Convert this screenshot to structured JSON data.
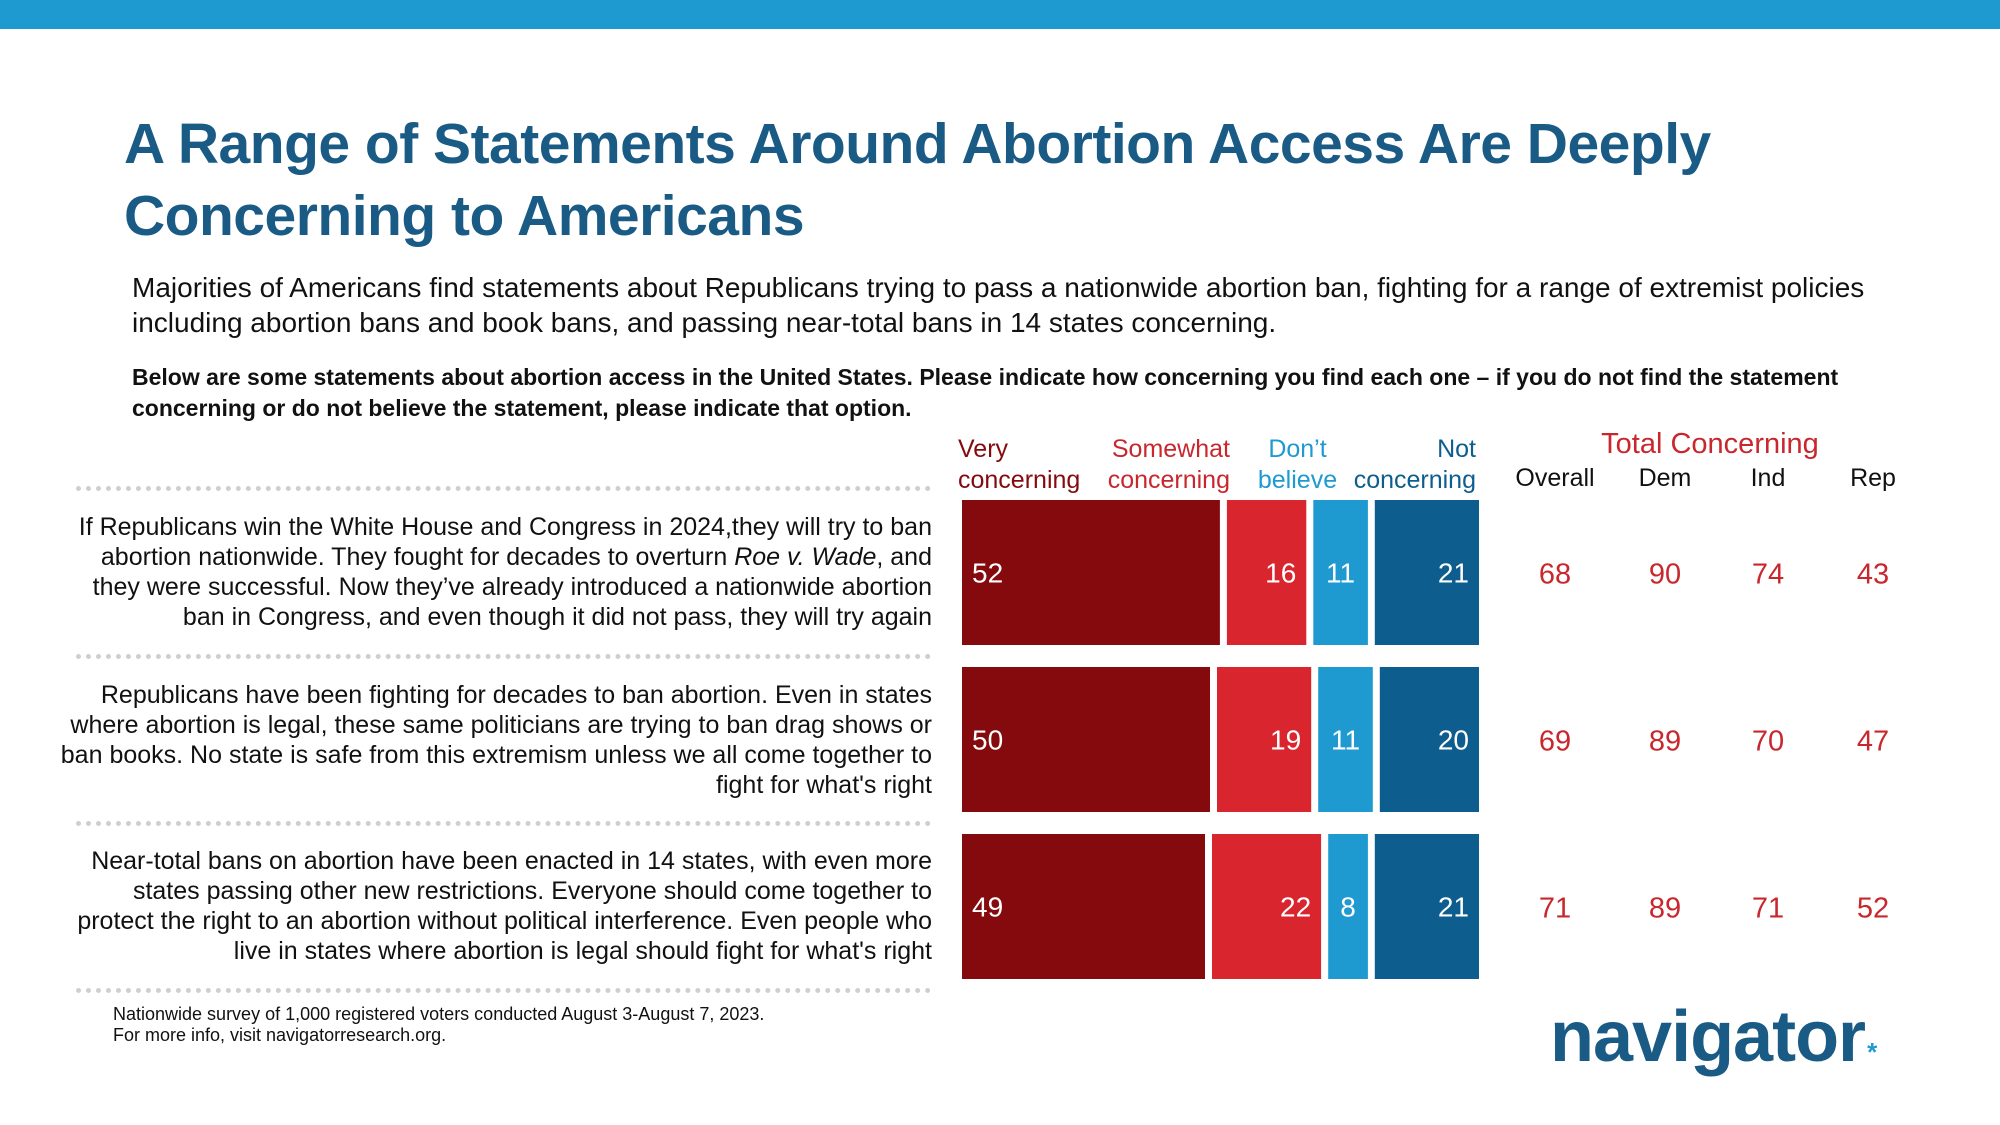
{
  "title": "A Range of Statements Around Abortion Access Are Deeply Concerning to Americans",
  "subtitle": "Majorities of Americans find statements about Republicans trying to pass a nationwide abortion ban, fighting for a range of extremist policies including abortion bans and book bans, and passing near-total bans in 14 states concerning.",
  "question": "Below are some statements about abortion access in the United States. Please indicate how concerning you find each one – if you do not find the statement concerning or do not believe the statement, please indicate that option.",
  "footnote": {
    "line1": "Nationwide survey of 1,000 registered voters conducted August 3-August 7, 2023.",
    "line2": "For more info, visit navigatorresearch.org."
  },
  "logo": {
    "text": "navigator",
    "mark": "*"
  },
  "colors": {
    "very_concerning": "#850a0e",
    "somewhat_concerning": "#d9262e",
    "dont_believe": "#1f9ad0",
    "not_concerning": "#0d5e8e",
    "total_concerning_text": "#c8282d",
    "title": "#1a5b86"
  },
  "chart_data": {
    "type": "bar",
    "orientation": "horizontal",
    "stacked": true,
    "categories": [
      "If Republicans win the White House and Congress in 2024,they will try to ban abortion nationwide. They fought for decades to overturn Roe v. Wade, and they were successful. Now they’ve already introduced a nationwide abortion ban in Congress, and even though it did not pass, they will try again",
      "Republicans have been fighting for decades to ban abortion. Even in states where abortion is legal, these same politicians are trying to ban drag shows or ban books. No state is safe from this extremism unless we all come together to fight for what's right",
      "Near-total bans on abortion have been enacted in 14 states, with even more states passing other new restrictions. Everyone should come together to protect the right to an abortion without political interference. Even people who live in states where abortion is legal should fight for what's right"
    ],
    "series": [
      {
        "name": "Very concerning",
        "values": [
          52,
          50,
          49
        ]
      },
      {
        "name": "Somewhat concerning",
        "values": [
          16,
          19,
          22
        ]
      },
      {
        "name": "Don’t believe",
        "values": [
          11,
          11,
          8
        ]
      },
      {
        "name": "Not concerning",
        "values": [
          21,
          20,
          21
        ]
      }
    ],
    "legend_labels": [
      "Very\nconcerning",
      "Somewhat\nconcerning",
      "Don’t\nbelieve",
      "Not\nconcerning"
    ],
    "total_concerning": {
      "header": "Total Concerning",
      "columns": [
        "Overall",
        "Dem",
        "Ind",
        "Rep"
      ],
      "rows": [
        [
          68,
          90,
          74,
          43
        ],
        [
          69,
          89,
          70,
          47
        ],
        [
          71,
          89,
          71,
          52
        ]
      ]
    }
  }
}
